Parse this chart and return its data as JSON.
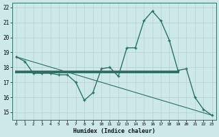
{
  "xlabel": "Humidex (Indice chaleur)",
  "background_color": "#cce8e8",
  "line_color": "#2e6e65",
  "grid_color": "#b8d4d4",
  "xlim": [
    -0.5,
    23.5
  ],
  "ylim": [
    14.5,
    22.3
  ],
  "yticks": [
    15,
    16,
    17,
    18,
    19,
    20,
    21,
    22
  ],
  "xticks": [
    0,
    1,
    2,
    3,
    4,
    5,
    6,
    7,
    8,
    9,
    10,
    11,
    12,
    13,
    14,
    15,
    16,
    17,
    18,
    19,
    20,
    21,
    22,
    23
  ],
  "series1_x": [
    0,
    1,
    2,
    3,
    4,
    5,
    6,
    7,
    8,
    9,
    10,
    11,
    12,
    13,
    14,
    15,
    16,
    17,
    18,
    19,
    20,
    21,
    22,
    23
  ],
  "series1_y": [
    18.7,
    18.4,
    17.6,
    17.6,
    17.6,
    17.5,
    17.5,
    17.0,
    15.8,
    16.3,
    17.9,
    18.0,
    17.4,
    19.3,
    19.3,
    21.1,
    21.75,
    21.1,
    19.8,
    17.8,
    17.9,
    16.0,
    15.2,
    14.8
  ],
  "series2_x": [
    0,
    23
  ],
  "series2_y": [
    18.7,
    14.8
  ],
  "series3_x": [
    0,
    19
  ],
  "series3_y": [
    17.7,
    17.7
  ]
}
